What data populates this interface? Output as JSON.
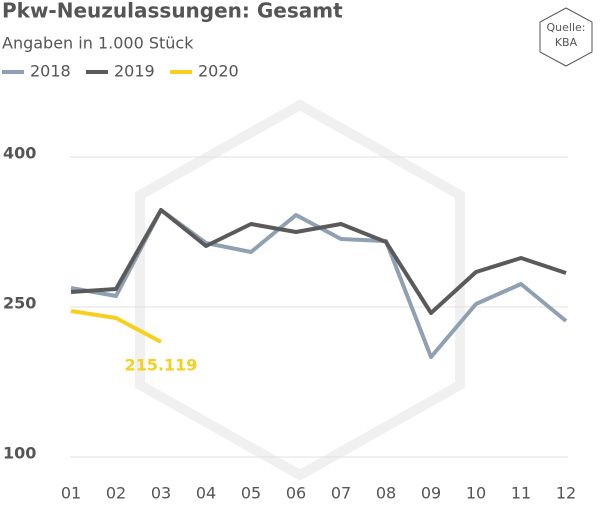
{
  "chart_data": {
    "type": "line",
    "title": "Pkw-Neuzulassungen: Gesamt",
    "subtitle": "Angaben in 1.000 Stück",
    "source": "Quelle:",
    "source_name": "KBA",
    "categories": [
      "01",
      "02",
      "03",
      "04",
      "05",
      "06",
      "07",
      "08",
      "09",
      "10",
      "11",
      "12"
    ],
    "series": [
      {
        "name": "2018",
        "color": "#8fa0b2",
        "values": [
          269,
          261,
          347,
          314,
          305,
          342,
          318,
          316,
          200,
          253,
          273,
          236
        ]
      },
      {
        "name": "2019",
        "color": "#5a5a5a",
        "values": [
          265,
          268,
          347,
          311,
          333,
          325,
          333,
          315,
          244,
          285,
          299,
          284
        ]
      },
      {
        "name": "2020",
        "color": "#f7cf1c",
        "values": [
          246,
          239,
          215.119,
          null,
          null,
          null,
          null,
          null,
          null,
          null,
          null,
          null
        ],
        "value_labels": [
          null,
          null,
          "215.119",
          null,
          null,
          null,
          null,
          null,
          null,
          null,
          null,
          null
        ]
      }
    ],
    "ylim": [
      100,
      400
    ],
    "yticks": [
      100,
      250,
      400
    ],
    "grid": true,
    "legend": "top-left"
  }
}
